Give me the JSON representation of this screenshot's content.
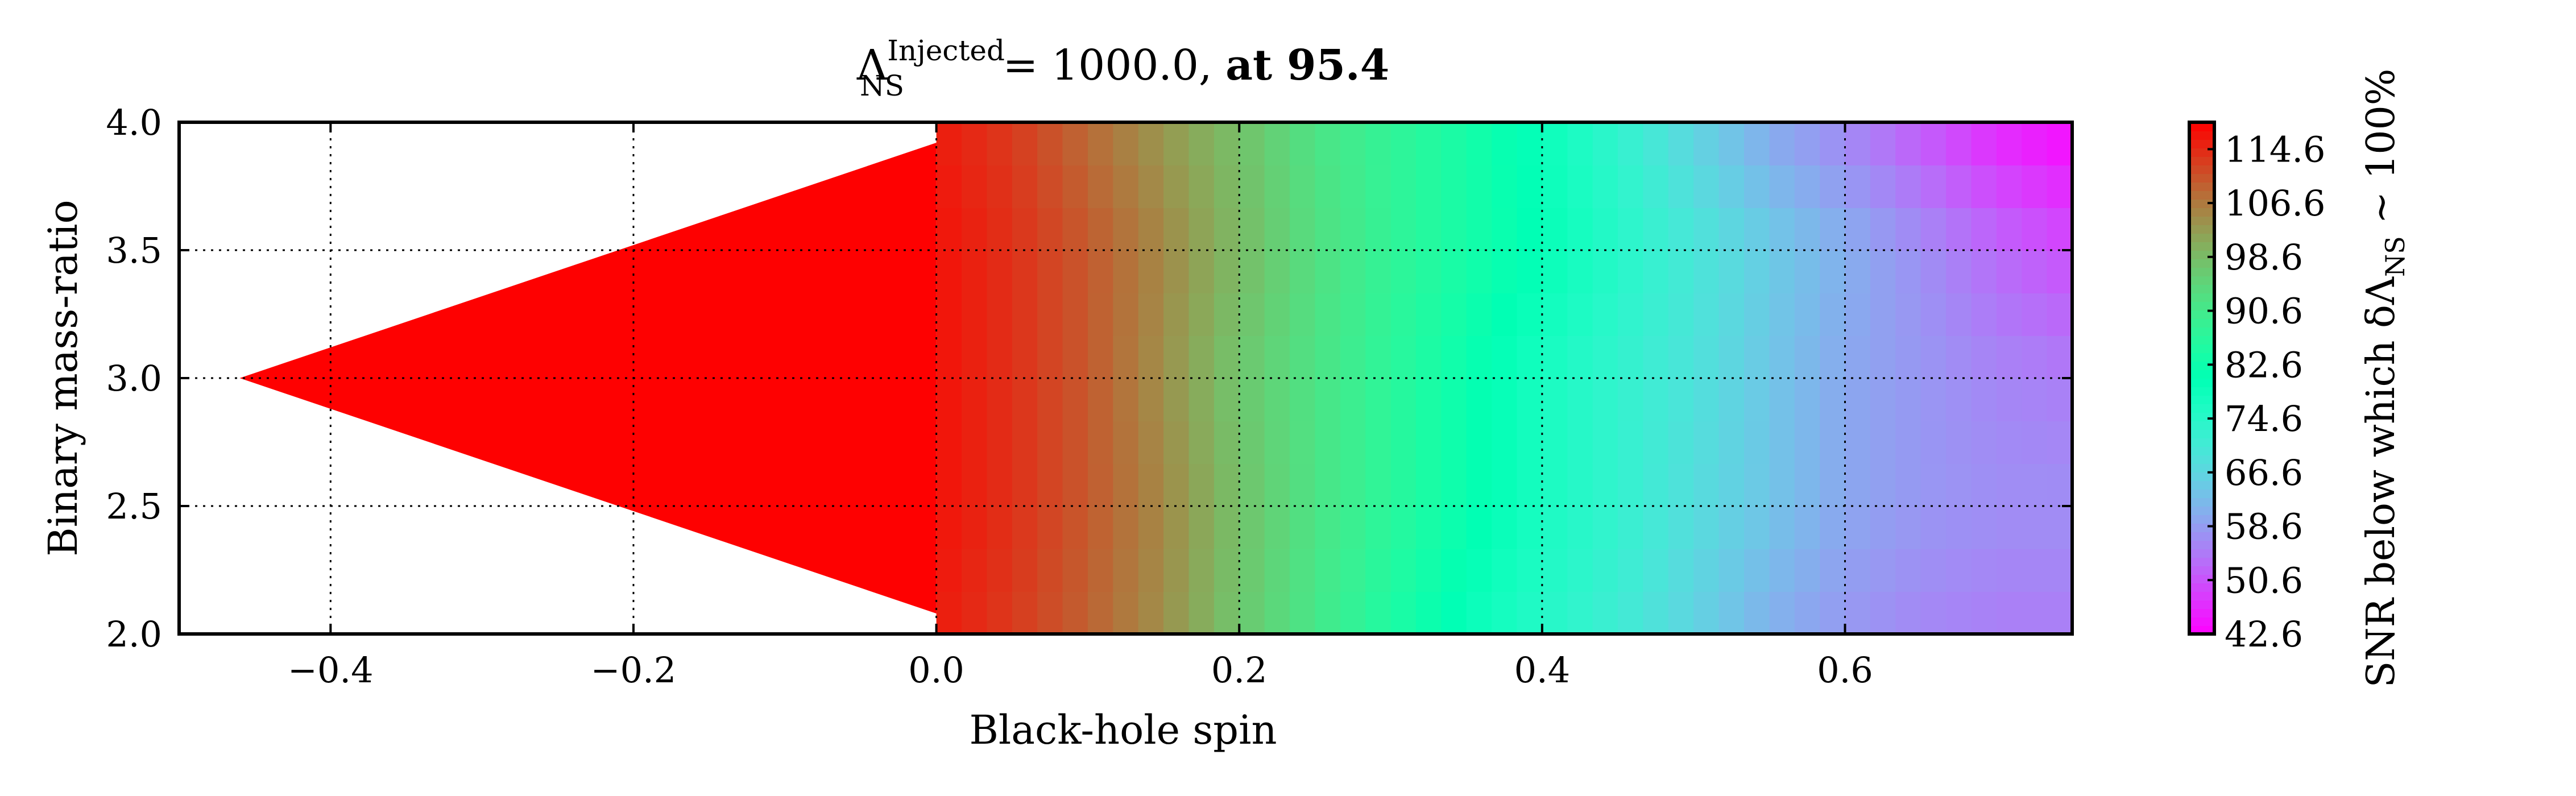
{
  "chart_data": {
    "type": "heatmap",
    "title": {
      "prefix": "Λ",
      "sup": "Injected",
      "sub": "NS",
      "value_text": " = 1000.0, ",
      "suffix": "at 95.4"
    },
    "xlabel": "Black-hole spin",
    "ylabel": "Binary mass-ratio",
    "xlim": [
      -0.5,
      0.75
    ],
    "ylim": [
      2.0,
      4.0
    ],
    "xticks": [
      -0.4,
      -0.2,
      0.0,
      0.2,
      0.4,
      0.6
    ],
    "xtick_labels": [
      "−0.4",
      "−0.2",
      "0.0",
      "0.2",
      "0.4",
      "0.6"
    ],
    "yticks": [
      2.0,
      2.5,
      3.0,
      3.5,
      4.0
    ],
    "ytick_labels": [
      "2.0",
      "2.5",
      "3.0",
      "3.5",
      "4.0"
    ],
    "grid": true,
    "colorbar": {
      "label_text": "SNR below which δΛ",
      "label_sub": "NS",
      "label_tail": " ∼ 100%",
      "min": 42.6,
      "max": 118.6,
      "ticks": [
        42.6,
        50.6,
        58.6,
        66.6,
        74.6,
        82.6,
        90.6,
        98.6,
        106.6,
        114.6
      ],
      "tick_labels": [
        "42.6",
        "50.6",
        "58.6",
        "66.6",
        "74.6",
        "82.6",
        "90.6",
        "98.6",
        "106.6",
        "114.6"
      ],
      "colormap": "rainbow"
    },
    "spins": [
      -0.46,
      0.0,
      0.05,
      0.1,
      0.15,
      0.2,
      0.25,
      0.3,
      0.35,
      0.4,
      0.45,
      0.5,
      0.55,
      0.6,
      0.65,
      0.7,
      0.75
    ],
    "mass_ratios": [
      2.0,
      2.5,
      3.0,
      3.5,
      4.0
    ],
    "snr_rows": [
      [
        118.5,
        116,
        113,
        109,
        104,
        97,
        91,
        85,
        79,
        75,
        71,
        66,
        61,
        58,
        56,
        55,
        55
      ],
      [
        118.5,
        117,
        114,
        110,
        105,
        98,
        92,
        87,
        82,
        77,
        73,
        68,
        64,
        60,
        58,
        57,
        57
      ],
      [
        118.5,
        117,
        114,
        110,
        104,
        97,
        92,
        87,
        82,
        77,
        73,
        69,
        64,
        60,
        58,
        56,
        55
      ],
      [
        118.5,
        117,
        114,
        110,
        105,
        99,
        93,
        88,
        84,
        80,
        75,
        70,
        65,
        61,
        57,
        53,
        50
      ],
      [
        118.5,
        116,
        113,
        108,
        103,
        98,
        92,
        88,
        84,
        79,
        73,
        66,
        60,
        56,
        51,
        46,
        43
      ]
    ],
    "negative_spin_wedge": {
      "tip": [
        -0.46,
        3.0
      ],
      "top": [
        0.0,
        3.92
      ],
      "bottom": [
        0.0,
        2.08
      ],
      "snr": 118.5
    }
  }
}
